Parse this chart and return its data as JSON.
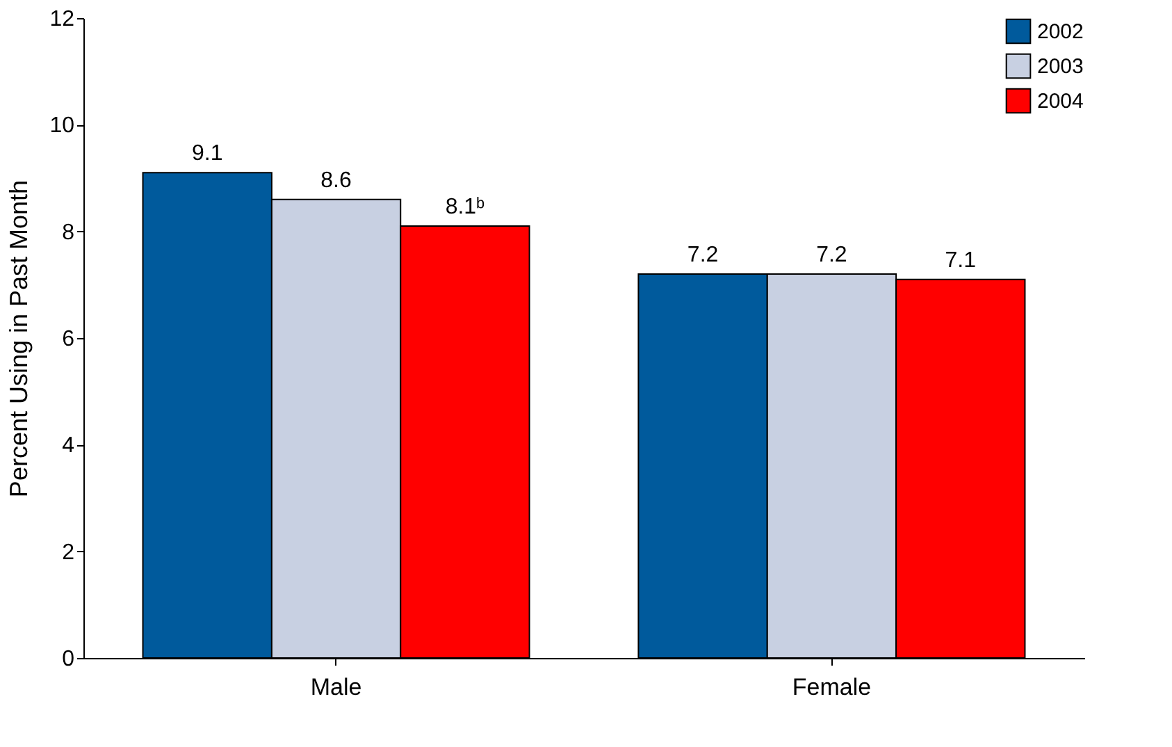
{
  "chart_data": {
    "type": "bar",
    "ylabel": "Percent Using in Past Month",
    "categories": [
      "Male",
      "Female"
    ],
    "series": [
      {
        "name": "2002",
        "color": "#005a9c",
        "values": [
          9.1,
          7.2
        ],
        "value_labels": [
          "9.1",
          "7.2"
        ]
      },
      {
        "name": "2003",
        "color": "#c8d0e2",
        "values": [
          8.6,
          7.2
        ],
        "value_labels": [
          "8.6",
          "7.2"
        ]
      },
      {
        "name": "2004",
        "color": "#ff0000",
        "values": [
          8.1,
          7.1
        ],
        "value_labels": [
          "8.1ᵇ",
          "7.1"
        ]
      }
    ],
    "ylim": [
      0,
      12
    ],
    "yticks": [
      0,
      2,
      4,
      6,
      8,
      10,
      12
    ],
    "grid": false,
    "legend": "top right"
  }
}
